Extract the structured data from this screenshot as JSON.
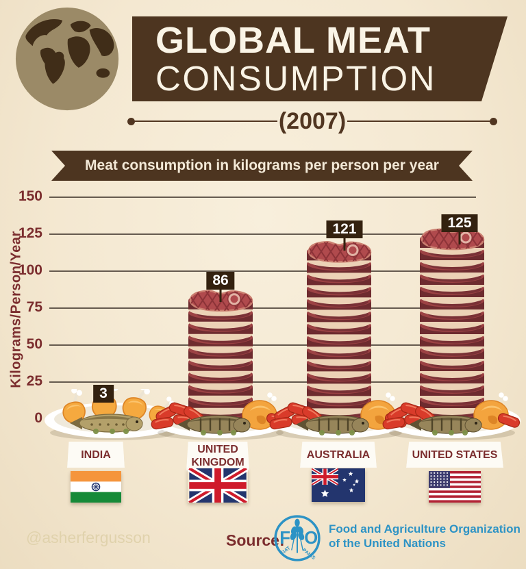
{
  "header": {
    "title_line1": "GLOBAL MEAT",
    "title_line2": "CONSUMPTION",
    "year": "(2007)"
  },
  "banner": {
    "text": "Meat consumption in kilograms per person per year"
  },
  "chart_data": {
    "type": "bar",
    "title": "Meat consumption in kilograms per person per year",
    "xlabel": "",
    "ylabel": "Kilograms/Person/Year",
    "ylim": [
      0,
      150
    ],
    "yticks": [
      0,
      25,
      50,
      75,
      100,
      125,
      150
    ],
    "categories": [
      "India",
      "United Kingdom",
      "Australia",
      "United States"
    ],
    "values": [
      3,
      86,
      121,
      125
    ],
    "unit": "kilograms per person per year",
    "grid": true,
    "legend_position": "none",
    "bar_style": "stacked-steak-illustration"
  },
  "bars": [
    {
      "label": "INDIA",
      "value": 3,
      "value_label": "3",
      "flag": "india",
      "plate": "roast-chicken-and-fish"
    },
    {
      "label": "UNITED KINGDOM",
      "value": 86,
      "value_label": "86",
      "flag": "united-kingdom",
      "plate": "sausages-roast-fish"
    },
    {
      "label": "AUSTRALIA",
      "value": 121,
      "value_label": "121",
      "flag": "australia",
      "plate": "sausages-roast-fish"
    },
    {
      "label": "UNITED STATES",
      "value": 125,
      "value_label": "125",
      "flag": "united-states",
      "plate": "sausages-roast-fish"
    }
  ],
  "footer": {
    "watermark": "@asherfergusson",
    "source_label": "Source:",
    "fao_logo_letters": {
      "f": "F",
      "o": "O"
    },
    "fao_motto_left": "FIAT",
    "fao_motto_right": "PANIS",
    "source_name_line1": "Food and Agriculture Organization",
    "source_name_line2": "of the United Nations"
  },
  "colors": {
    "background": "#f4e8d1",
    "header_brown": "#4d3520",
    "year_brown": "#513621",
    "maroon_text": "#7b2d2e",
    "gridline": "#4b4137",
    "tag_background": "#33210f",
    "steak_side": "#6e2b2f",
    "steak_top": "#9c4244",
    "steak_rim": "#ecd2b6",
    "steak_face": "#b04a4d",
    "card_background": "#fdfbf5",
    "fao_blue": "#2d93c5",
    "watermark": "#e0d2ac"
  }
}
